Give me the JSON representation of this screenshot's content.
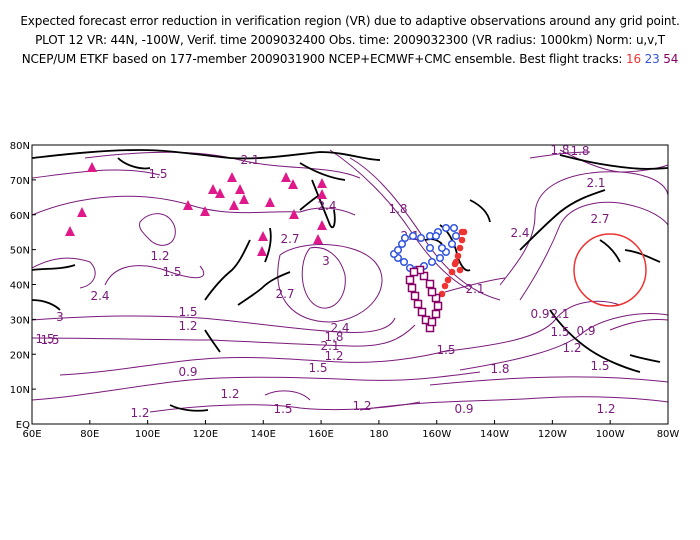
{
  "header": {
    "line1": "Expected forecast error reduction in verification region (VR) due to adaptive observations around any grid point.",
    "line2": "PLOT 12 VR: 44N, -100W, Verif. time 2009032400 Obs. time: 2009032300 (VR radius: 1000km) Norm: u,v,T",
    "line3_prefix": "NCEP/UM ETKF based on 177-member 2009031900 NCEP+ECMWF+CMC ensemble. Best flight tracks:",
    "track_a": "16",
    "track_b": "23",
    "track_c": "54"
  },
  "map": {
    "lon_labels": [
      "60E",
      "80E",
      "100E",
      "120E",
      "140E",
      "160E",
      "180",
      "160W",
      "140W",
      "120W",
      "100W",
      "80W"
    ],
    "lat_labels": [
      "EQ",
      "10N",
      "20N",
      "30N",
      "40N",
      "50N",
      "60N",
      "70N",
      "80N"
    ],
    "contour_labels": [
      "2.1",
      "1.5",
      "1.8",
      "2.1",
      "1.2",
      "1.5",
      "2.7",
      "2.4",
      "1.8",
      "2.1",
      "3",
      "2.7",
      "2.4",
      "1.8",
      "1.2",
      "1.5",
      "2.1",
      "2.7",
      "2.4",
      "2.1",
      "1.5",
      "1.5",
      "1.2",
      "0.9",
      "1.5",
      "1.8",
      "2.1",
      "1.8",
      "1.2",
      "1.5",
      "1.2",
      "0.9",
      "1.2",
      "1.5",
      "1.2",
      "0.9",
      "1.5",
      "2.4",
      "3",
      "1.5",
      "1.2",
      "0.9"
    ],
    "colors": {
      "contour": "#7a1a7a",
      "coast": "#000000",
      "verification_circle": "#ee3333",
      "track_16": "#ee3333",
      "track_23": "#3355dd",
      "track_54": "#880066",
      "stations": "#e0198a"
    }
  }
}
